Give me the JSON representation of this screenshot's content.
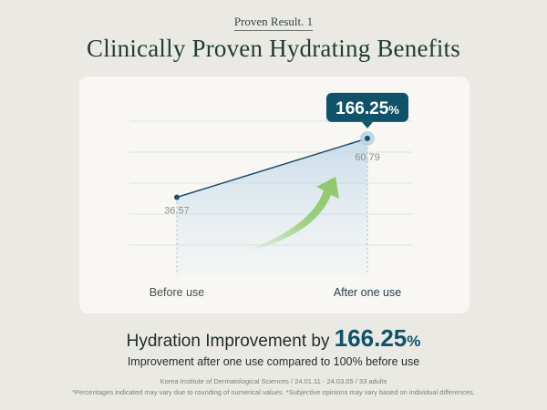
{
  "header": {
    "eyebrow": "Proven Result. 1",
    "title": "Clinically Proven Hydrating Benefits"
  },
  "chart_data": {
    "type": "line",
    "categories": [
      "Before use",
      "After one use"
    ],
    "values": [
      36.57,
      60.79
    ],
    "data_labels": [
      "36.57",
      "60.79"
    ],
    "callout": {
      "value": "166.25",
      "unit": "%"
    },
    "grid": true,
    "colors": {
      "line": "#1e4f6b",
      "callout": "#0f5269",
      "arrow": "#8dc86a",
      "fill": "#b9d3e6"
    }
  },
  "result": {
    "prefix": "Hydration Improvement by ",
    "value": "166.25",
    "unit": "%",
    "subtitle": "Improvement after one use compared to 100% before use"
  },
  "footnotes": {
    "source": "Korea Institute of Dermatological Sciences / 24.01.11 - 24.03.05 / 33 adults",
    "disclaimer": "*Percentages indicated may vary due to rounding of numerical values. *Subjective opinions may vary based on individual differences."
  }
}
